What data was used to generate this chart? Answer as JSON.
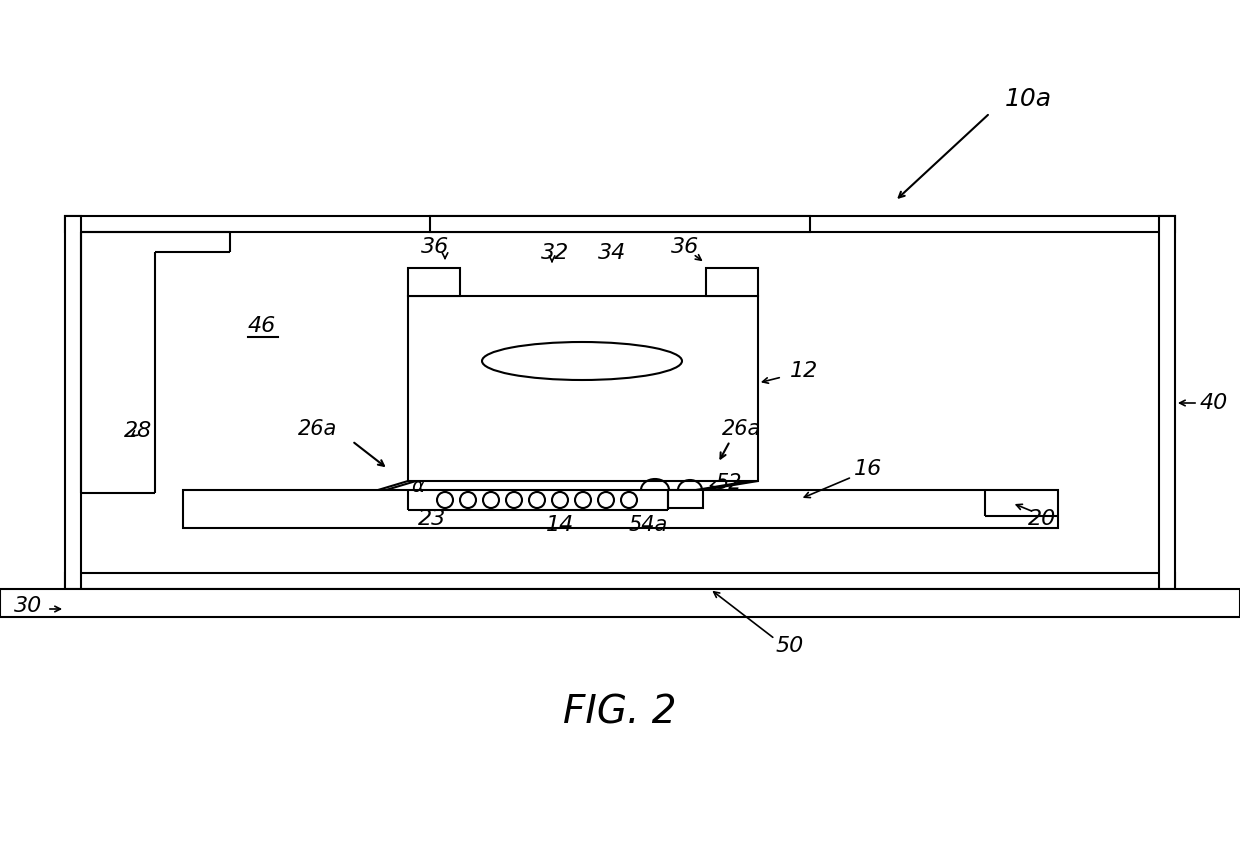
{
  "fig_label": "FIG. 2",
  "ref_10a": "10a",
  "ref_12": "12",
  "ref_14": "14",
  "ref_16": "16",
  "ref_20": "20",
  "ref_23": "23",
  "ref_26a_left": "26a",
  "ref_26a_right": "26a",
  "ref_28": "28",
  "ref_30": "30",
  "ref_32": "32",
  "ref_34": "34",
  "ref_36_left": "36",
  "ref_36_right": "36",
  "ref_40": "40",
  "ref_46": "46",
  "ref_50": "50",
  "ref_52": "52",
  "ref_54a": "54a",
  "ref_alpha": "α",
  "line_color": "#000000",
  "bg_color": "#ffffff",
  "lw": 1.5,
  "lw_thick": 2.0
}
